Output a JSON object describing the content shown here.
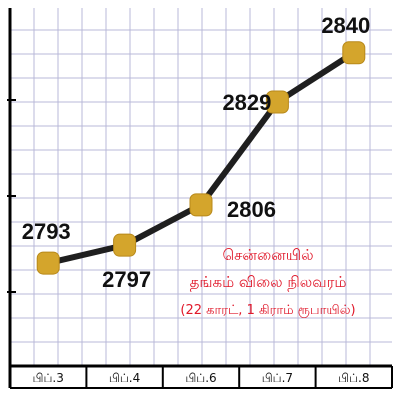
{
  "chart_data": {
    "type": "line",
    "categories": [
      "பிப்.3",
      "பிப்.4",
      "பிப்.6",
      "பிப்.7",
      "பிப்.8"
    ],
    "values": [
      2793,
      2797,
      2806,
      2829,
      2840
    ],
    "data_labels": [
      "2793",
      "2797",
      "2806",
      "2829",
      "2840"
    ],
    "title": [
      "சென்னையில்",
      "தங்கம் விலை நிலவரம்",
      "(22 காரட், 1 கிராம் ரூபாயில்)"
    ],
    "xlabel": "",
    "ylabel": "",
    "ylim": [
      2770,
      2850
    ],
    "grid": true,
    "colors": {
      "line": "#1f1f1f",
      "marker": "#d4a52c",
      "title": "#e0182a",
      "grid": "#b8b8d8"
    }
  }
}
